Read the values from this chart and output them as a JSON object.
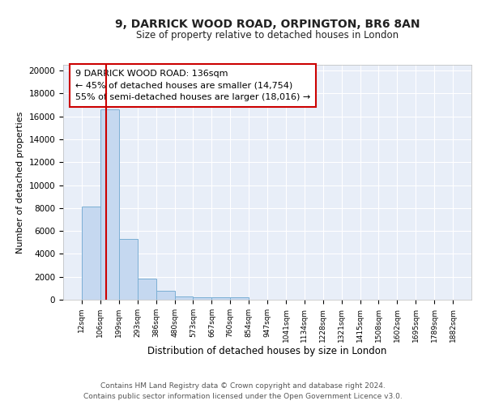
{
  "title": "9, DARRICK WOOD ROAD, ORPINGTON, BR6 8AN",
  "subtitle": "Size of property relative to detached houses in London",
  "xlabel": "Distribution of detached houses by size in London",
  "ylabel": "Number of detached properties",
  "bin_edges": [
    12,
    106,
    199,
    293,
    386,
    480,
    573,
    667,
    760,
    854,
    947,
    1041,
    1134,
    1228,
    1321,
    1415,
    1508,
    1602,
    1695,
    1789,
    1882
  ],
  "bar_heights": [
    8100,
    16600,
    5300,
    1850,
    750,
    300,
    230,
    200,
    180,
    0,
    0,
    0,
    0,
    0,
    0,
    0,
    0,
    0,
    0,
    0
  ],
  "bar_color": "#c5d8f0",
  "bar_edge_color": "#7bafd4",
  "bg_color": "#e8eef8",
  "grid_color": "#ffffff",
  "red_line_x": 136,
  "red_line_color": "#cc0000",
  "annotation_text": "9 DARRICK WOOD ROAD: 136sqm\n← 45% of detached houses are smaller (14,754)\n55% of semi-detached houses are larger (18,016) →",
  "annotation_box_color": "#ffffff",
  "annotation_box_edge": "#cc0000",
  "ylim": [
    0,
    20500
  ],
  "yticks": [
    0,
    2000,
    4000,
    6000,
    8000,
    10000,
    12000,
    14000,
    16000,
    18000,
    20000
  ],
  "footer1": "Contains HM Land Registry data © Crown copyright and database right 2024.",
  "footer2": "Contains public sector information licensed under the Open Government Licence v3.0.",
  "title_fontsize": 10,
  "subtitle_fontsize": 8.5,
  "tick_label_fontsize": 6.5,
  "ylabel_fontsize": 8,
  "xlabel_fontsize": 8.5,
  "annotation_fontsize": 8,
  "footer_fontsize": 6.5
}
